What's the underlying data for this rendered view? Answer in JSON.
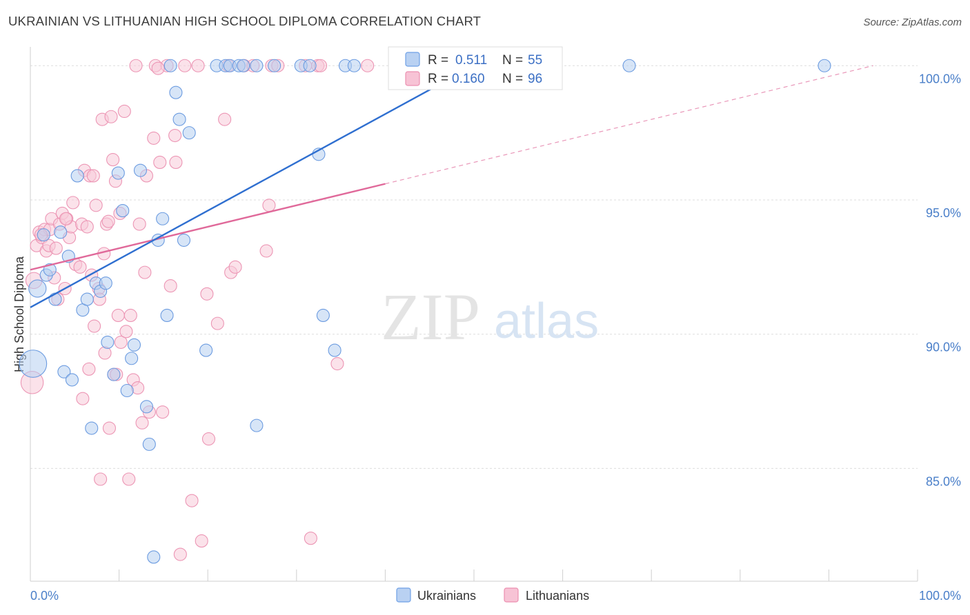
{
  "header": {
    "title": "UKRAINIAN VS LITHUANIAN HIGH SCHOOL DIPLOMA CORRELATION CHART",
    "source": "Source: ZipAtlas.com"
  },
  "watermark": {
    "zip": "ZIP",
    "atlas": "atlas"
  },
  "legend": {
    "rows": [
      {
        "r_label": "R =",
        "r_value": "0.511",
        "n_label": "N =",
        "n_value": "55",
        "color": "#6fa0e6",
        "fill": "#b9d1f2"
      },
      {
        "r_label": "R =",
        "r_value": "0.160",
        "n_label": "N =",
        "n_value": "96",
        "color": "#ec8fb0",
        "fill": "#f7c3d5"
      }
    ]
  },
  "bottom_legend": [
    "Ukrainians",
    "Lithuanians"
  ],
  "colors": {
    "blue_line": "#2f6fd0",
    "pink_line": "#e0699a",
    "blue_point_stroke": "#6b9be0",
    "blue_point_fill": "#b7d0f0",
    "pink_point_stroke": "#ec95b4",
    "pink_point_fill": "#f8cbd9",
    "grid": "#dddddd"
  },
  "chart_data": {
    "type": "scatter",
    "title": "UKRAINIAN VS LITHUANIAN HIGH SCHOOL DIPLOMA CORRELATION CHART",
    "xlabel": "",
    "ylabel": "High School Diploma",
    "xlim": [
      0,
      100
    ],
    "ylim": [
      80.8,
      100.7
    ],
    "x_tick_labels": [
      "0.0%",
      "100.0%"
    ],
    "y_ticks": [
      85,
      90,
      95,
      100
    ],
    "y_tick_labels": [
      "85.0%",
      "90.0%",
      "95.0%",
      "100.0%"
    ],
    "grid": true,
    "legend_position": "top-center",
    "series": [
      {
        "name": "Ukrainians",
        "r": 0.511,
        "n": 55,
        "trend": {
          "x": [
            0,
            50
          ],
          "y": [
            91.0,
            100.0
          ]
        },
        "points": [
          {
            "x": 0.3,
            "y": 88.9,
            "s": 2.2
          },
          {
            "x": 0.8,
            "y": 91.7,
            "s": 1.4
          },
          {
            "x": 1.5,
            "y": 93.7,
            "s": 1
          },
          {
            "x": 1.8,
            "y": 92.2,
            "s": 1
          },
          {
            "x": 2.2,
            "y": 92.4,
            "s": 1
          },
          {
            "x": 2.8,
            "y": 91.3,
            "s": 1
          },
          {
            "x": 3.4,
            "y": 93.8,
            "s": 1
          },
          {
            "x": 3.8,
            "y": 88.6,
            "s": 1
          },
          {
            "x": 4.3,
            "y": 92.9,
            "s": 1
          },
          {
            "x": 4.7,
            "y": 88.3,
            "s": 1
          },
          {
            "x": 5.3,
            "y": 95.9,
            "s": 1
          },
          {
            "x": 5.9,
            "y": 90.9,
            "s": 1
          },
          {
            "x": 6.4,
            "y": 91.3,
            "s": 1
          },
          {
            "x": 6.9,
            "y": 86.5,
            "s": 1
          },
          {
            "x": 7.4,
            "y": 91.9,
            "s": 1
          },
          {
            "x": 7.9,
            "y": 91.6,
            "s": 1
          },
          {
            "x": 8.5,
            "y": 91.9,
            "s": 1
          },
          {
            "x": 8.7,
            "y": 89.7,
            "s": 1
          },
          {
            "x": 9.4,
            "y": 88.5,
            "s": 1
          },
          {
            "x": 9.9,
            "y": 96.0,
            "s": 1
          },
          {
            "x": 10.4,
            "y": 94.6,
            "s": 1
          },
          {
            "x": 10.9,
            "y": 87.9,
            "s": 1
          },
          {
            "x": 11.4,
            "y": 89.1,
            "s": 1
          },
          {
            "x": 11.7,
            "y": 89.6,
            "s": 1
          },
          {
            "x": 12.4,
            "y": 96.1,
            "s": 1
          },
          {
            "x": 13.1,
            "y": 87.3,
            "s": 1
          },
          {
            "x": 13.4,
            "y": 85.9,
            "s": 1
          },
          {
            "x": 13.9,
            "y": 81.7,
            "s": 1
          },
          {
            "x": 14.4,
            "y": 93.5,
            "s": 1
          },
          {
            "x": 14.9,
            "y": 94.3,
            "s": 1
          },
          {
            "x": 15.4,
            "y": 90.7,
            "s": 1
          },
          {
            "x": 15.8,
            "y": 100.0,
            "s": 1
          },
          {
            "x": 16.4,
            "y": 99.0,
            "s": 1
          },
          {
            "x": 16.8,
            "y": 98.0,
            "s": 1
          },
          {
            "x": 17.3,
            "y": 93.5,
            "s": 1
          },
          {
            "x": 17.9,
            "y": 97.5,
            "s": 1
          },
          {
            "x": 19.8,
            "y": 89.4,
            "s": 1
          },
          {
            "x": 21.0,
            "y": 100.0,
            "s": 1
          },
          {
            "x": 22.0,
            "y": 100.0,
            "s": 1
          },
          {
            "x": 22.5,
            "y": 100.0,
            "s": 1
          },
          {
            "x": 23.5,
            "y": 100.0,
            "s": 1
          },
          {
            "x": 24.0,
            "y": 100.0,
            "s": 1
          },
          {
            "x": 25.5,
            "y": 100.0,
            "s": 1
          },
          {
            "x": 25.5,
            "y": 86.6,
            "s": 1
          },
          {
            "x": 27.5,
            "y": 100.0,
            "s": 1
          },
          {
            "x": 30.5,
            "y": 100.0,
            "s": 1
          },
          {
            "x": 31.5,
            "y": 100.0,
            "s": 1
          },
          {
            "x": 32.5,
            "y": 96.7,
            "s": 1
          },
          {
            "x": 33.0,
            "y": 90.7,
            "s": 1
          },
          {
            "x": 34.3,
            "y": 89.4,
            "s": 1
          },
          {
            "x": 35.5,
            "y": 100.0,
            "s": 1
          },
          {
            "x": 36.5,
            "y": 100.0,
            "s": 1
          },
          {
            "x": 47.5,
            "y": 100.0,
            "s": 1
          },
          {
            "x": 67.5,
            "y": 100.0,
            "s": 1
          },
          {
            "x": 89.5,
            "y": 100.0,
            "s": 1
          }
        ]
      },
      {
        "name": "Lithuanians",
        "r": 0.16,
        "n": 96,
        "trend": {
          "x": [
            0,
            40
          ],
          "y": [
            92.4,
            95.6
          ]
        },
        "trend_extension": {
          "x": [
            40,
            95
          ],
          "y": [
            95.6,
            100.0
          ]
        },
        "points": [
          {
            "x": 0.2,
            "y": 88.2,
            "s": 1.8
          },
          {
            "x": 0.4,
            "y": 92.0,
            "s": 1.3
          },
          {
            "x": 0.7,
            "y": 93.3,
            "s": 1
          },
          {
            "x": 1.0,
            "y": 93.8,
            "s": 1
          },
          {
            "x": 1.3,
            "y": 93.6,
            "s": 1
          },
          {
            "x": 1.6,
            "y": 93.9,
            "s": 1
          },
          {
            "x": 1.8,
            "y": 93.1,
            "s": 1
          },
          {
            "x": 2.1,
            "y": 93.3,
            "s": 1
          },
          {
            "x": 2.2,
            "y": 93.9,
            "s": 1
          },
          {
            "x": 2.4,
            "y": 94.3,
            "s": 1
          },
          {
            "x": 2.7,
            "y": 92.1,
            "s": 1
          },
          {
            "x": 3.1,
            "y": 91.3,
            "s": 1
          },
          {
            "x": 3.3,
            "y": 94.1,
            "s": 1
          },
          {
            "x": 3.6,
            "y": 94.5,
            "s": 1
          },
          {
            "x": 3.9,
            "y": 91.7,
            "s": 1
          },
          {
            "x": 4.1,
            "y": 94.3,
            "s": 1
          },
          {
            "x": 4.4,
            "y": 93.6,
            "s": 1
          },
          {
            "x": 4.6,
            "y": 94.0,
            "s": 1
          },
          {
            "x": 4.8,
            "y": 94.9,
            "s": 1
          },
          {
            "x": 5.1,
            "y": 92.6,
            "s": 1
          },
          {
            "x": 5.6,
            "y": 92.5,
            "s": 1
          },
          {
            "x": 5.8,
            "y": 94.1,
            "s": 1
          },
          {
            "x": 5.9,
            "y": 87.6,
            "s": 1
          },
          {
            "x": 6.1,
            "y": 96.1,
            "s": 1
          },
          {
            "x": 6.4,
            "y": 94.0,
            "s": 1
          },
          {
            "x": 6.7,
            "y": 95.9,
            "s": 1
          },
          {
            "x": 6.6,
            "y": 88.7,
            "s": 1
          },
          {
            "x": 6.9,
            "y": 92.2,
            "s": 1
          },
          {
            "x": 7.2,
            "y": 90.3,
            "s": 1
          },
          {
            "x": 7.1,
            "y": 95.9,
            "s": 1
          },
          {
            "x": 7.4,
            "y": 94.8,
            "s": 1
          },
          {
            "x": 7.7,
            "y": 91.7,
            "s": 1
          },
          {
            "x": 7.8,
            "y": 91.3,
            "s": 1
          },
          {
            "x": 7.9,
            "y": 84.6,
            "s": 1
          },
          {
            "x": 8.1,
            "y": 98.0,
            "s": 1
          },
          {
            "x": 8.3,
            "y": 93.0,
            "s": 1
          },
          {
            "x": 8.4,
            "y": 89.3,
            "s": 1
          },
          {
            "x": 8.6,
            "y": 94.1,
            "s": 1
          },
          {
            "x": 8.8,
            "y": 94.2,
            "s": 1
          },
          {
            "x": 8.9,
            "y": 86.5,
            "s": 1
          },
          {
            "x": 9.1,
            "y": 98.1,
            "s": 1
          },
          {
            "x": 9.3,
            "y": 96.5,
            "s": 1
          },
          {
            "x": 9.4,
            "y": 88.5,
            "s": 1
          },
          {
            "x": 9.6,
            "y": 95.7,
            "s": 1
          },
          {
            "x": 9.9,
            "y": 90.7,
            "s": 1
          },
          {
            "x": 10.1,
            "y": 94.5,
            "s": 1
          },
          {
            "x": 10.2,
            "y": 89.7,
            "s": 1
          },
          {
            "x": 10.6,
            "y": 98.3,
            "s": 1
          },
          {
            "x": 10.8,
            "y": 90.1,
            "s": 1
          },
          {
            "x": 11.1,
            "y": 84.6,
            "s": 1
          },
          {
            "x": 11.3,
            "y": 90.7,
            "s": 1
          },
          {
            "x": 11.6,
            "y": 88.3,
            "s": 1
          },
          {
            "x": 12.1,
            "y": 88.0,
            "s": 1
          },
          {
            "x": 12.3,
            "y": 94.1,
            "s": 1
          },
          {
            "x": 12.6,
            "y": 86.7,
            "s": 1
          },
          {
            "x": 12.9,
            "y": 92.3,
            "s": 1
          },
          {
            "x": 13.1,
            "y": 95.9,
            "s": 1
          },
          {
            "x": 13.4,
            "y": 87.1,
            "s": 1
          },
          {
            "x": 13.9,
            "y": 97.3,
            "s": 1
          },
          {
            "x": 14.1,
            "y": 100.0,
            "s": 1
          },
          {
            "x": 14.6,
            "y": 96.4,
            "s": 1
          },
          {
            "x": 14.9,
            "y": 87.1,
            "s": 1
          },
          {
            "x": 15.4,
            "y": 100.0,
            "s": 1
          },
          {
            "x": 15.8,
            "y": 91.8,
            "s": 1
          },
          {
            "x": 16.3,
            "y": 97.4,
            "s": 1
          },
          {
            "x": 16.4,
            "y": 96.4,
            "s": 1
          },
          {
            "x": 16.9,
            "y": 81.8,
            "s": 1
          },
          {
            "x": 17.4,
            "y": 100.0,
            "s": 1
          },
          {
            "x": 18.2,
            "y": 83.8,
            "s": 1
          },
          {
            "x": 18.9,
            "y": 100.0,
            "s": 1
          },
          {
            "x": 19.3,
            "y": 82.3,
            "s": 1
          },
          {
            "x": 19.9,
            "y": 91.5,
            "s": 1
          },
          {
            "x": 20.1,
            "y": 86.1,
            "s": 1
          },
          {
            "x": 21.1,
            "y": 90.4,
            "s": 1
          },
          {
            "x": 21.9,
            "y": 98.0,
            "s": 1
          },
          {
            "x": 22.3,
            "y": 100.0,
            "s": 1
          },
          {
            "x": 22.6,
            "y": 92.3,
            "s": 1
          },
          {
            "x": 23.1,
            "y": 92.5,
            "s": 1
          },
          {
            "x": 24.1,
            "y": 100.0,
            "s": 1
          },
          {
            "x": 25.1,
            "y": 100.0,
            "s": 1
          },
          {
            "x": 26.6,
            "y": 93.1,
            "s": 1
          },
          {
            "x": 26.9,
            "y": 94.8,
            "s": 1
          },
          {
            "x": 27.2,
            "y": 100.0,
            "s": 1
          },
          {
            "x": 31.0,
            "y": 100.0,
            "s": 1
          },
          {
            "x": 31.6,
            "y": 82.4,
            "s": 1
          },
          {
            "x": 32.4,
            "y": 100.0,
            "s": 1
          },
          {
            "x": 32.7,
            "y": 100.0,
            "s": 1
          },
          {
            "x": 34.6,
            "y": 88.9,
            "s": 1
          },
          {
            "x": 38.0,
            "y": 100.0,
            "s": 1
          },
          {
            "x": 1.2,
            "y": 93.7,
            "s": 1
          },
          {
            "x": 2.9,
            "y": 93.2,
            "s": 1
          },
          {
            "x": 4.0,
            "y": 94.3,
            "s": 1
          },
          {
            "x": 9.7,
            "y": 88.5,
            "s": 1
          },
          {
            "x": 11.9,
            "y": 100.0,
            "s": 1
          },
          {
            "x": 14.4,
            "y": 99.9,
            "s": 1
          },
          {
            "x": 27.9,
            "y": 100.0,
            "s": 1
          }
        ]
      }
    ]
  }
}
